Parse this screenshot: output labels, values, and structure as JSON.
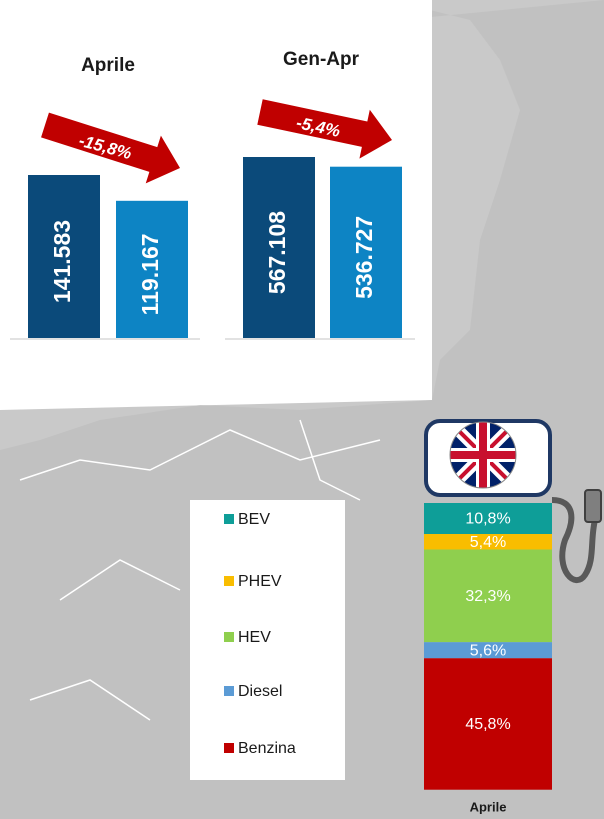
{
  "chart_data": [
    {
      "type": "bar",
      "title": "Aprile",
      "values": [
        141583,
        119167
      ],
      "value_labels": [
        "141.583",
        "119.167"
      ],
      "colors": [
        "#0b4a7a",
        "#0d84c4"
      ],
      "annotation": "-15,8%"
    },
    {
      "type": "bar",
      "title": "Gen-Apr",
      "values": [
        567108,
        536727
      ],
      "value_labels": [
        "567.108",
        "536.727"
      ],
      "colors": [
        "#0b4a7a",
        "#0d84c4"
      ],
      "annotation": "-5,4%"
    },
    {
      "type": "stacked_bar",
      "categories": [
        "Aprile"
      ],
      "series": [
        {
          "name": "BEV",
          "color": "#0e9e98",
          "values": [
            10.8
          ],
          "value_labels": [
            "10,8%"
          ]
        },
        {
          "name": "PHEV",
          "color": "#f9bd00",
          "values": [
            5.4
          ],
          "value_labels": [
            "5,4%"
          ]
        },
        {
          "name": "HEV",
          "color": "#8fcf4e",
          "values": [
            32.3
          ],
          "value_labels": [
            "32,3%"
          ]
        },
        {
          "name": "Diesel",
          "color": "#5b9bd5",
          "values": [
            5.6
          ],
          "value_labels": [
            "5,6%"
          ]
        },
        {
          "name": "Benzina",
          "color": "#c00000",
          "values": [
            45.8
          ],
          "value_labels": [
            "45,8%"
          ]
        }
      ]
    }
  ]
}
